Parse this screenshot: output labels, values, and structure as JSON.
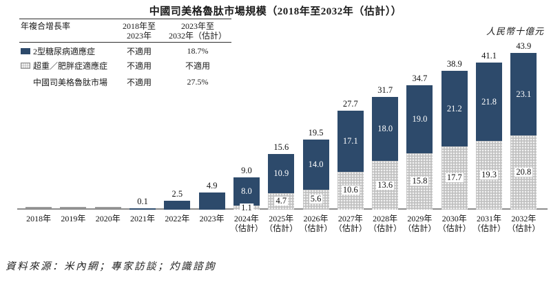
{
  "title": "中國司美格魯肽市場規模（2018年至2032年（估計））",
  "unit_label": "人民幣十億元",
  "source": "資料來源：米內網；專家訪談；灼識諮詢",
  "cagr_table": {
    "corner_label": "年複合增長率",
    "col1_line1": "2018年至",
    "col1_line2": "2023年",
    "col2_line1": "2023年至",
    "col2_line2": "2032年（估計）",
    "rows": [
      {
        "label": "2型糖尿病適應症",
        "swatch": "solid-blue",
        "col1": "不適用",
        "col2": "18.7%"
      },
      {
        "label": "超重／肥胖症適應症",
        "swatch": "dotted-gray",
        "col1": "不適用",
        "col2": "不適用"
      },
      {
        "label": "中國司美格魯肽市場",
        "swatch": "none",
        "col1": "不適用",
        "col2": "27.5%"
      }
    ]
  },
  "colors": {
    "t2d_blue": "#2d4a6b",
    "obesity_gray": "#c9c9c9",
    "axis_gray": "#8c8c8c"
  },
  "chart_data": {
    "type": "bar",
    "stacked": true,
    "title": "中國司美格魯肽市場規模（2018年至2032年（估計））",
    "ylabel": "人民幣十億元",
    "ylim": [
      0,
      45
    ],
    "grid": false,
    "legend_position": "top-left-table",
    "estimated_suffix": "（估計）",
    "series_names": [
      "2型糖尿病適應症",
      "超重／肥胖症適應症"
    ],
    "bars": [
      {
        "category": "2018年",
        "estimated": false,
        "t2d": 0,
        "obesity": 0,
        "total": null
      },
      {
        "category": "2019年",
        "estimated": false,
        "t2d": 0,
        "obesity": 0,
        "total": null
      },
      {
        "category": "2020年",
        "estimated": false,
        "t2d": 0,
        "obesity": 0,
        "total": null
      },
      {
        "category": "2021年",
        "estimated": false,
        "t2d": 0.1,
        "obesity": 0,
        "total": 0.1
      },
      {
        "category": "2022年",
        "estimated": false,
        "t2d": 2.5,
        "obesity": 0,
        "total": 2.5
      },
      {
        "category": "2023年",
        "estimated": false,
        "t2d": 4.9,
        "obesity": 0,
        "total": 4.9
      },
      {
        "category": "2024年",
        "estimated": true,
        "t2d": 8.0,
        "obesity": 1.1,
        "total": 9.0
      },
      {
        "category": "2025年",
        "estimated": true,
        "t2d": 10.9,
        "obesity": 4.7,
        "total": 15.6
      },
      {
        "category": "2026年",
        "estimated": true,
        "t2d": 14.0,
        "obesity": 5.6,
        "total": 19.5
      },
      {
        "category": "2027年",
        "estimated": true,
        "t2d": 17.1,
        "obesity": 10.6,
        "total": 27.7
      },
      {
        "category": "2028年",
        "estimated": true,
        "t2d": 18.0,
        "obesity": 13.6,
        "total": 31.7
      },
      {
        "category": "2029年",
        "estimated": true,
        "t2d": 19.0,
        "obesity": 15.8,
        "total": 34.7
      },
      {
        "category": "2030年",
        "estimated": true,
        "t2d": 21.2,
        "obesity": 17.7,
        "total": 38.9
      },
      {
        "category": "2031年",
        "estimated": true,
        "t2d": 21.8,
        "obesity": 19.3,
        "total": 41.1
      },
      {
        "category": "2032年",
        "estimated": true,
        "t2d": 23.1,
        "obesity": 20.8,
        "total": 43.9
      }
    ]
  }
}
